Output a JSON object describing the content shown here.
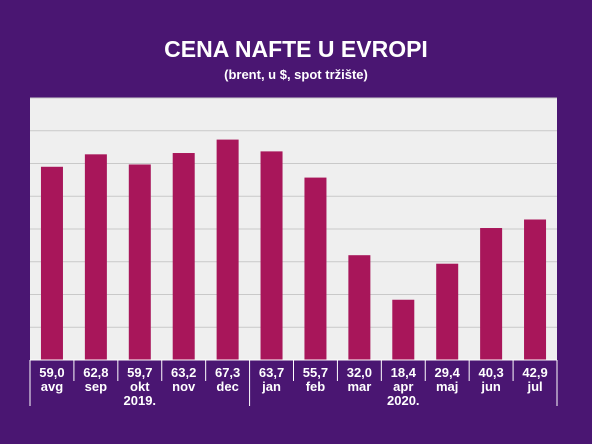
{
  "chart_data": {
    "type": "bar",
    "title": "CENA NAFTE U EVROPI",
    "subtitle": "(brent, u $, spot tržište)",
    "categories": [
      "avg",
      "sep",
      "okt",
      "nov",
      "dec",
      "jan",
      "feb",
      "mar",
      "apr",
      "maj",
      "jun",
      "jul"
    ],
    "values": [
      59.0,
      62.8,
      59.7,
      63.2,
      67.3,
      63.7,
      55.7,
      32.0,
      18.4,
      29.4,
      40.3,
      42.9
    ],
    "value_labels": [
      "59,0",
      "62,8",
      "59,7",
      "63,2",
      "67,3",
      "63,7",
      "55,7",
      "32,0",
      "18,4",
      "29,4",
      "40,3",
      "42,9"
    ],
    "year_groups": [
      {
        "label": "2019.",
        "start": 0,
        "end": 4
      },
      {
        "label": "2020.",
        "start": 5,
        "end": 11
      }
    ],
    "ylim": [
      0,
      80
    ],
    "grid": true,
    "colors": {
      "background": "#4a1672",
      "plot_area": "#efefef",
      "bar": "#a8165a",
      "grid": "#c9c9c9",
      "text": "#ffffff"
    }
  }
}
